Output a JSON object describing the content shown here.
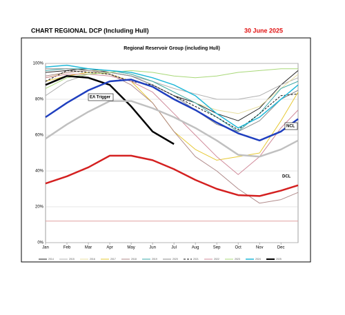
{
  "header": {
    "title": "CHART REGIONAL DCP (Including Hull)",
    "date": "30 June 2025"
  },
  "chart_data": {
    "type": "line",
    "title": "Regional Reservoir Group (including Hull)",
    "x": [
      0,
      1,
      2,
      3,
      4,
      5,
      6,
      7,
      8,
      9,
      10,
      11,
      11.8
    ],
    "xlim": [
      0,
      11.8
    ],
    "xticks": [
      {
        "value": 0,
        "label": "Jan"
      },
      {
        "value": 1,
        "label": "Feb"
      },
      {
        "value": 2,
        "label": "Mar"
      },
      {
        "value": 3,
        "label": "Apr"
      },
      {
        "value": 4,
        "label": "May"
      },
      {
        "value": 5,
        "label": "Jun"
      },
      {
        "value": 6,
        "label": "Jul"
      },
      {
        "value": 7,
        "label": "Aug"
      },
      {
        "value": 8,
        "label": "Sep"
      },
      {
        "value": 9,
        "label": "Oct"
      },
      {
        "value": 10,
        "label": "Nov"
      },
      {
        "value": 11,
        "label": "Dec"
      }
    ],
    "ylim": [
      0,
      100
    ],
    "yticks": [
      {
        "value": 0,
        "label": "0%"
      },
      {
        "value": 20,
        "label": "20%"
      },
      {
        "value": 40,
        "label": "40%"
      },
      {
        "value": 60,
        "label": "60%"
      },
      {
        "value": 80,
        "label": "80%"
      },
      {
        "value": 100,
        "label": "100%"
      }
    ],
    "grid": true,
    "series": [
      {
        "name": "2014",
        "color": "#222222",
        "width": 1,
        "values": [
          95,
          96,
          97,
          95,
          93,
          88,
          82,
          78,
          72,
          68,
          75,
          88,
          96
        ]
      },
      {
        "name": "2015",
        "color": "#b0b0b0",
        "width": 1,
        "values": [
          82,
          90,
          94,
          95,
          93,
          90,
          86,
          83,
          80,
          80,
          82,
          88,
          92
        ]
      },
      {
        "name": "2016",
        "color": "#e8dfa0",
        "width": 1,
        "values": [
          92,
          95,
          96,
          96,
          94,
          90,
          84,
          78,
          74,
          72,
          76,
          86,
          94
        ]
      },
      {
        "name": "2017",
        "color": "#e6c832",
        "width": 1,
        "values": [
          90,
          93,
          95,
          94,
          90,
          78,
          62,
          52,
          46,
          48,
          50,
          68,
          84
        ]
      },
      {
        "name": "2018",
        "color": "#b08a8a",
        "width": 1,
        "values": [
          93,
          95,
          96,
          94,
          88,
          78,
          62,
          48,
          40,
          30,
          22,
          24,
          28
        ]
      },
      {
        "name": "2019",
        "color": "#3aa8a8",
        "width": 1,
        "values": [
          96,
          97,
          97,
          96,
          94,
          90,
          84,
          78,
          70,
          62,
          72,
          86,
          90
        ]
      },
      {
        "name": "2020",
        "color": "#8c8c8c",
        "width": 1,
        "values": [
          97,
          97,
          96,
          95,
          93,
          88,
          82,
          74,
          66,
          62,
          68,
          80,
          85
        ]
      },
      {
        "name": "2021",
        "color": "#111111",
        "width": 1,
        "dash": true,
        "values": [
          90,
          96,
          95,
          94,
          90,
          88,
          82,
          76,
          70,
          63,
          72,
          82,
          83
        ]
      },
      {
        "name": "2022",
        "color": "#d08a9a",
        "width": 1,
        "values": [
          92,
          94,
          94,
          93,
          90,
          84,
          72,
          60,
          48,
          38,
          48,
          64,
          74
        ]
      },
      {
        "name": "2023",
        "color": "#a8d878",
        "width": 1,
        "values": [
          86,
          92,
          94,
          95,
          96,
          95,
          93,
          92,
          93,
          95,
          96,
          97,
          97
        ]
      },
      {
        "name": "2024",
        "color": "#20b8d8",
        "width": 1.5,
        "values": [
          98,
          99,
          97,
          96,
          95,
          92,
          88,
          82,
          72,
          64,
          70,
          80,
          88
        ]
      },
      {
        "name": "2025",
        "color": "#000000",
        "width": 2.5,
        "values": [
          88,
          93,
          92,
          88,
          76,
          62,
          55,
          null,
          null,
          null,
          null,
          null,
          null
        ]
      },
      {
        "color": "#1f3fbf",
        "width": 2.5,
        "values": [
          70,
          78,
          85,
          90,
          91,
          87,
          80,
          74,
          67,
          61,
          57,
          62,
          69
        ]
      },
      {
        "color": "#c0c0c0",
        "width": 2.5,
        "values": [
          58,
          66,
          73,
          79,
          79,
          75,
          70,
          64,
          57,
          49,
          48,
          52,
          57
        ]
      },
      {
        "color": "#d42020",
        "width": 2.5,
        "values": [
          33,
          37,
          42,
          48.5,
          48.5,
          46,
          41,
          35,
          30,
          26.5,
          26,
          29,
          32
        ]
      },
      {
        "color": "#e0a0a0",
        "width": 1,
        "values": [
          12,
          12,
          12,
          12,
          12,
          12,
          12,
          12,
          12,
          12,
          12,
          12,
          12
        ]
      }
    ],
    "annotations": [
      "EA Trigger",
      "NCL",
      "DCL"
    ]
  }
}
